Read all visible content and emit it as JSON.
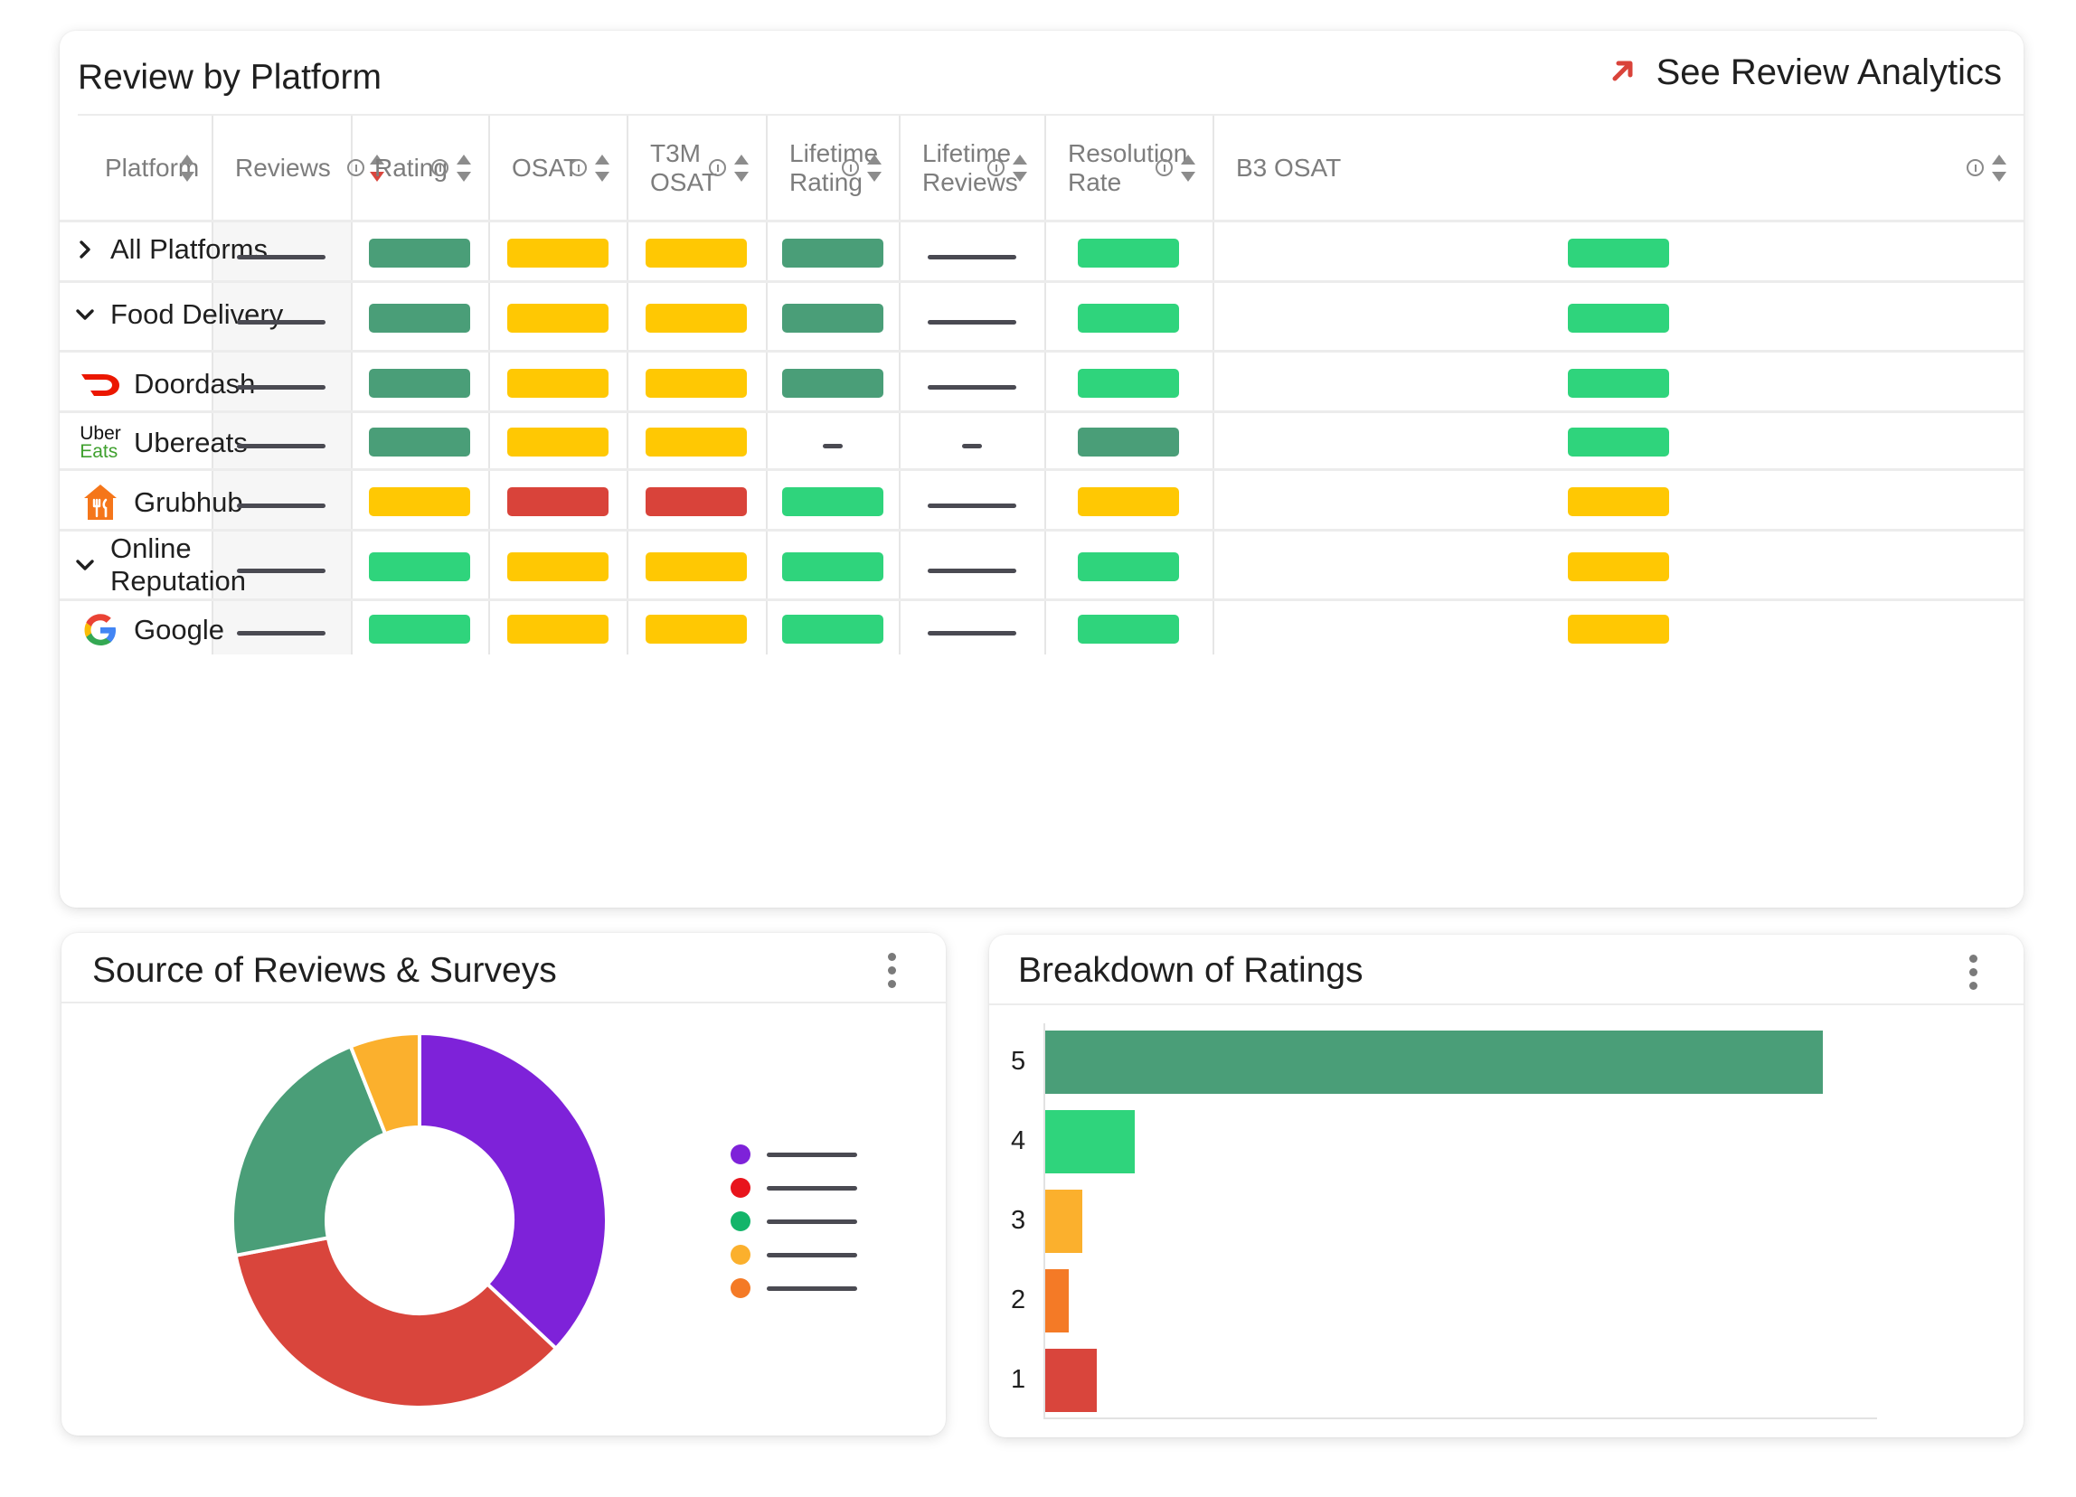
{
  "platform_table": {
    "title": "Review by Platform",
    "analytics_link": "See Review Analytics",
    "columns": [
      {
        "label": "Platform",
        "info": false,
        "sort": "neutral"
      },
      {
        "label": "Reviews",
        "info": true,
        "sort": "desc"
      },
      {
        "label": "Rating",
        "info": true,
        "sort": "neutral"
      },
      {
        "label": "OSAT",
        "info": true,
        "sort": "neutral"
      },
      {
        "label": "T3M\nOSAT",
        "info": true,
        "sort": "neutral"
      },
      {
        "label": "Lifetime\nRating",
        "info": true,
        "sort": "neutral"
      },
      {
        "label": "Lifetime\nReviews",
        "info": true,
        "sort": "neutral"
      },
      {
        "label": "Resolution\nRate",
        "info": true,
        "sort": "neutral"
      },
      {
        "label": "B3 OSAT",
        "info": true,
        "sort": "neutral"
      }
    ],
    "rows": [
      {
        "label": "All Platforms",
        "icon": "chevron-right-icon",
        "cells": [
          "dash",
          "dark-green",
          "yellow",
          "yellow",
          "dark-green",
          "dash",
          "green",
          "green"
        ]
      },
      {
        "label": "Food Delivery",
        "icon": "chevron-down-icon",
        "cells": [
          "dash",
          "dark-green",
          "yellow",
          "yellow",
          "dark-green",
          "dash",
          "green",
          "green"
        ]
      },
      {
        "label": "Doordash",
        "icon": "doordash-logo-icon",
        "cells": [
          "dash",
          "dark-green",
          "yellow",
          "yellow",
          "dark-green",
          "dash",
          "green",
          "green"
        ]
      },
      {
        "label": "Ubereats",
        "icon": "ubereats-logo-icon",
        "logo_text": [
          "Uber",
          "Eats"
        ],
        "cells": [
          "dash",
          "dark-green",
          "yellow",
          "yellow",
          "short-dash",
          "short-dash",
          "dark-green",
          "green"
        ]
      },
      {
        "label": "Grubhub",
        "icon": "grubhub-logo-icon",
        "cells": [
          "dash",
          "yellow",
          "red",
          "red",
          "green",
          "dash",
          "yellow",
          "yellow"
        ]
      },
      {
        "label": "Online\nReputation",
        "icon": "chevron-down-icon",
        "cells": [
          "dash",
          "green",
          "yellow",
          "yellow",
          "green",
          "dash",
          "green",
          "yellow"
        ]
      },
      {
        "label": "Google",
        "icon": "google-logo-icon",
        "cells": [
          "dash",
          "green",
          "yellow",
          "yellow",
          "green",
          "dash",
          "green",
          "yellow"
        ]
      }
    ],
    "colors": {
      "dark-green": "#4a9e78",
      "green": "#2fd47c",
      "yellow": "#ffc803",
      "red": "#d9433a",
      "dash": "#4a4a52"
    }
  },
  "source_card": {
    "title": "Source of Reviews & Surveys",
    "menu_icon": "kebab-menu-icon",
    "chart_data": {
      "type": "pie",
      "donut": true,
      "title": "Source of Reviews & Surveys",
      "slices": [
        {
          "color": "#7e22d9",
          "value": 37
        },
        {
          "color": "#d9453c",
          "value": 35
        },
        {
          "color": "#4a9e78",
          "value": 22
        },
        {
          "color": "#fbb02d",
          "value": 6
        }
      ],
      "legend_colors": [
        "#7e22d9",
        "#e8141c",
        "#13b56a",
        "#fbb02d",
        "#f47a26"
      ]
    }
  },
  "ratings_card": {
    "title": "Breakdown of Ratings",
    "menu_icon": "kebab-menu-icon",
    "chart_data": {
      "type": "bar",
      "orientation": "horizontal",
      "title": "Breakdown of Ratings",
      "categories": [
        "5",
        "4",
        "3",
        "2",
        "1"
      ],
      "values": [
        100,
        11.5,
        4.8,
        3,
        6.6
      ],
      "colors": [
        "#4a9e78",
        "#2fd47c",
        "#fbb02d",
        "#f47a26",
        "#d9453c"
      ],
      "xlim": [
        0,
        107
      ]
    }
  }
}
